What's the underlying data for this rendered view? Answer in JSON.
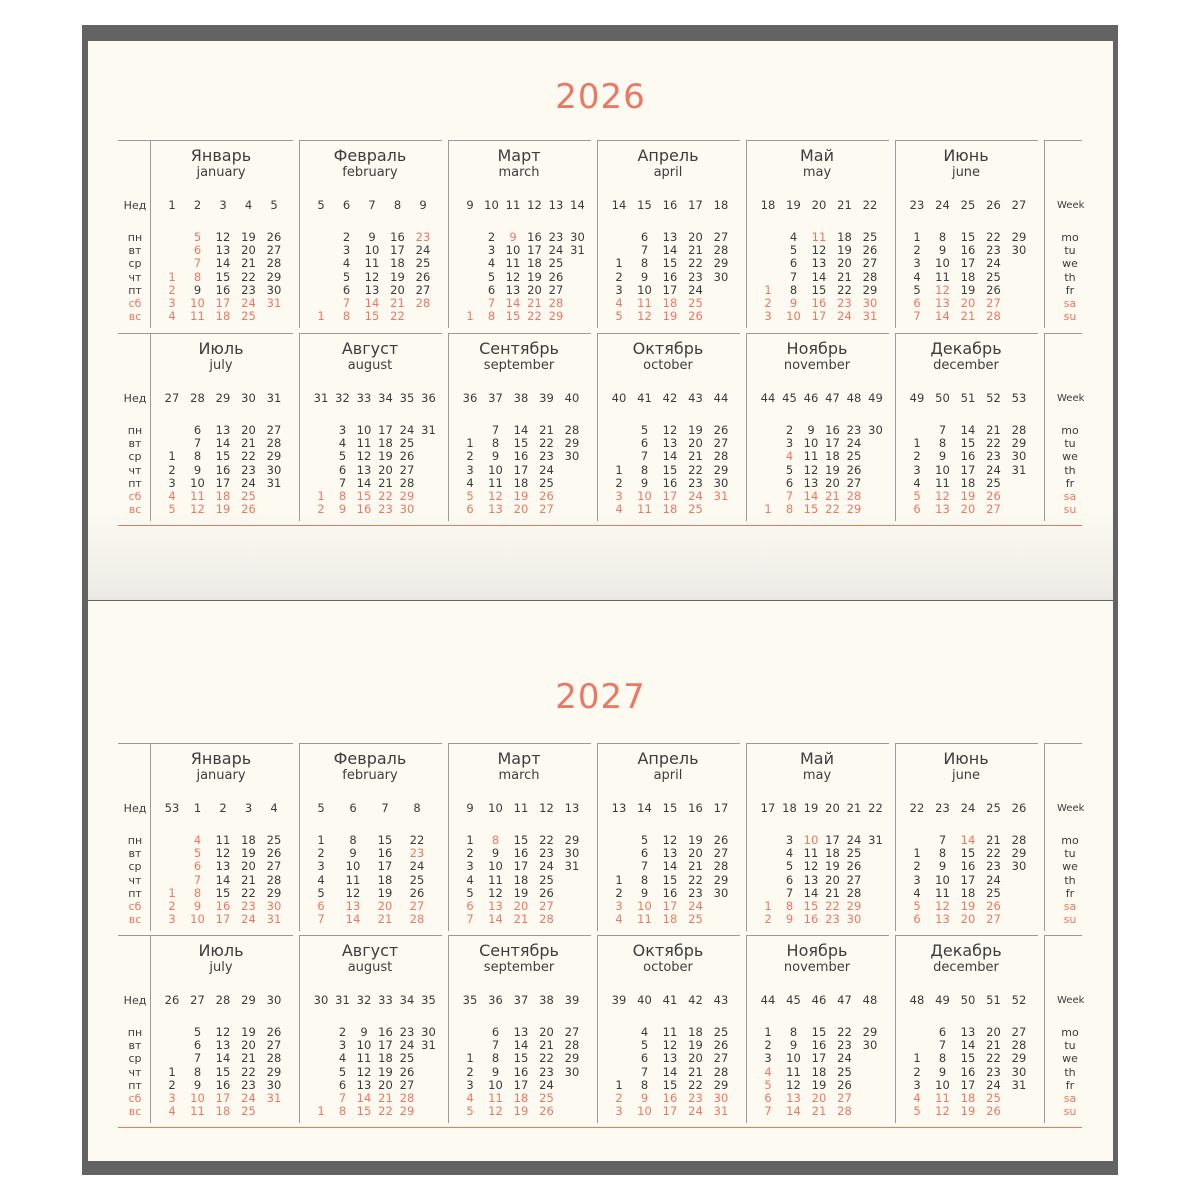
{
  "labels": {
    "week_ru": "Нед",
    "week_en": "Week",
    "weekdays_ru": [
      "пн",
      "вт",
      "ср",
      "чт",
      "пт",
      "сб",
      "вс"
    ],
    "weekdays_en": [
      "mo",
      "tu",
      "we",
      "th",
      "fr",
      "sa",
      "su"
    ]
  },
  "colors": {
    "accent": "#ec7762",
    "text": "#3a3a3a",
    "frame": "#636363",
    "paper": "#fcfaf1"
  },
  "years": [
    {
      "year": "2026",
      "months": [
        {
          "ru": "Январь",
          "en": "january",
          "weeks": [
            "1",
            "2",
            "3",
            "4",
            "5"
          ],
          "cols": [
            [
              "",
              "",
              "",
              "1",
              "2",
              "3",
              "4"
            ],
            [
              "5",
              "6",
              "7",
              "8",
              "9",
              "10",
              "11"
            ],
            [
              "12",
              "13",
              "14",
              "15",
              "16",
              "17",
              "18"
            ],
            [
              "19",
              "20",
              "21",
              "22",
              "23",
              "24",
              "25"
            ],
            [
              "26",
              "27",
              "28",
              "29",
              "30",
              "31",
              ""
            ]
          ],
          "holidays": [
            [
              1,
              0
            ],
            [
              1,
              1
            ],
            [
              1,
              2
            ],
            [
              1,
              3
            ],
            [
              1,
              4
            ],
            [
              1,
              5
            ],
            [
              1,
              6
            ]
          ]
        },
        {
          "ru": "Февраль",
          "en": "february",
          "weeks": [
            "5",
            "6",
            "7",
            "8",
            "9"
          ],
          "cols": [
            [
              "",
              "",
              "",
              "",
              "",
              "",
              "1"
            ],
            [
              "2",
              "3",
              "4",
              "5",
              "6",
              "7",
              "8"
            ],
            [
              "9",
              "10",
              "11",
              "12",
              "13",
              "14",
              "15"
            ],
            [
              "16",
              "17",
              "18",
              "19",
              "20",
              "21",
              "22"
            ],
            [
              "23",
              "24",
              "25",
              "26",
              "27",
              "28",
              ""
            ]
          ],
          "holidays": [
            [
              4,
              0
            ]
          ]
        },
        {
          "ru": "Март",
          "en": "march",
          "weeks": [
            "9",
            "10",
            "11",
            "12",
            "13",
            "14"
          ],
          "cols": [
            [
              "",
              "",
              "",
              "",
              "",
              "",
              "1"
            ],
            [
              "2",
              "3",
              "4",
              "5",
              "6",
              "7",
              "8"
            ],
            [
              "9",
              "10",
              "11",
              "12",
              "13",
              "14",
              "15"
            ],
            [
              "16",
              "17",
              "18",
              "19",
              "20",
              "21",
              "22"
            ],
            [
              "23",
              "24",
              "25",
              "26",
              "27",
              "28",
              "29"
            ],
            [
              "30",
              "31",
              "",
              "",
              "",
              "",
              ""
            ]
          ],
          "holidays": [
            [
              1,
              6
            ],
            [
              1,
              6
            ]
          ]
        },
        {
          "ru": "Апрель",
          "en": "april",
          "weeks": [
            "14",
            "15",
            "16",
            "17",
            "18"
          ],
          "cols": [
            [
              "",
              "",
              "1",
              "2",
              "3",
              "4",
              "5"
            ],
            [
              "6",
              "7",
              "8",
              "9",
              "10",
              "11",
              "12"
            ],
            [
              "13",
              "14",
              "15",
              "16",
              "17",
              "18",
              "19"
            ],
            [
              "20",
              "21",
              "22",
              "23",
              "24",
              "25",
              "26"
            ],
            [
              "27",
              "28",
              "29",
              "30",
              "",
              "",
              ""
            ]
          ],
          "holidays": []
        },
        {
          "ru": "Май",
          "en": "may",
          "weeks": [
            "18",
            "19",
            "20",
            "21",
            "22"
          ],
          "cols": [
            [
              "",
              "",
              "",
              "",
              "1",
              "2",
              "3"
            ],
            [
              "4",
              "5",
              "6",
              "7",
              "8",
              "9",
              "10"
            ],
            [
              "11",
              "12",
              "13",
              "14",
              "15",
              "16",
              "17"
            ],
            [
              "18",
              "19",
              "20",
              "21",
              "22",
              "23",
              "24"
            ],
            [
              "25",
              "26",
              "27",
              "28",
              "29",
              "30",
              "31"
            ]
          ],
          "holidays": [
            [
              0,
              4
            ],
            [
              1,
              5
            ]
          ]
        },
        {
          "ru": "Июнь",
          "en": "june",
          "weeks": [
            "23",
            "24",
            "25",
            "26",
            "27"
          ],
          "cols": [
            [
              "1",
              "2",
              "3",
              "4",
              "5",
              "6",
              "7"
            ],
            [
              "8",
              "9",
              "10",
              "11",
              "12",
              "13",
              "14"
            ],
            [
              "15",
              "16",
              "17",
              "18",
              "19",
              "20",
              "21"
            ],
            [
              "22",
              "23",
              "24",
              "25",
              "26",
              "27",
              "28"
            ],
            [
              "29",
              "30",
              "",
              "",
              "",
              "",
              ""
            ]
          ],
          "holidays": [
            [
              1,
              4
            ]
          ]
        }
      ]
    }
  ]
}
